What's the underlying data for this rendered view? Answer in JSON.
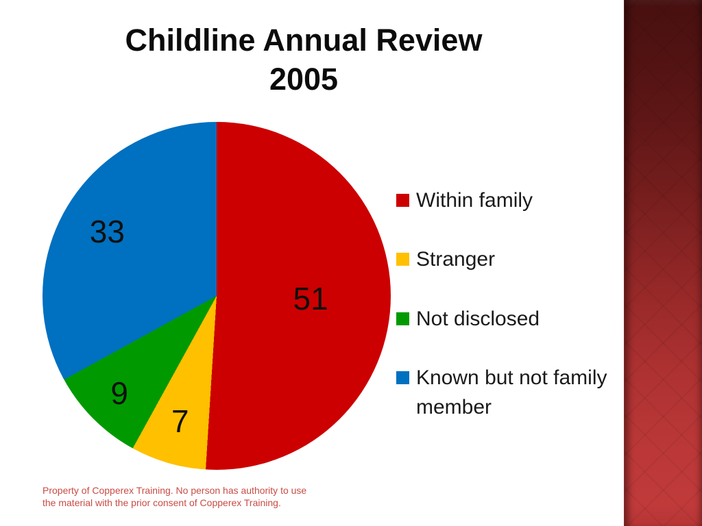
{
  "slide": {
    "title_line1": "Childline Annual Review",
    "title_line2": "2005",
    "footer": "Property of Copperex Training. No person has authority to use the material with the prior consent of Copperex Training.",
    "footer_color": "#C84B44",
    "background_color": "#FFFFFF",
    "sidebar_gradient_top": "#471010",
    "sidebar_gradient_bottom": "#C03A3A"
  },
  "chart_data": {
    "type": "pie",
    "title": "Childline Annual Review 2005",
    "categories": [
      "Within family",
      "Stranger",
      "Not disclosed",
      "Known but not family member"
    ],
    "values": [
      51,
      7,
      9,
      33
    ],
    "colors": [
      "#CC0000",
      "#FFC000",
      "#009A00",
      "#0070C0"
    ],
    "data_labels": [
      51,
      7,
      9,
      33
    ],
    "start_angle_deg": 0,
    "direction": "clockwise",
    "legend_position": "right",
    "label_radius_frac": [
      0.54,
      0.75,
      0.79,
      0.73
    ]
  }
}
